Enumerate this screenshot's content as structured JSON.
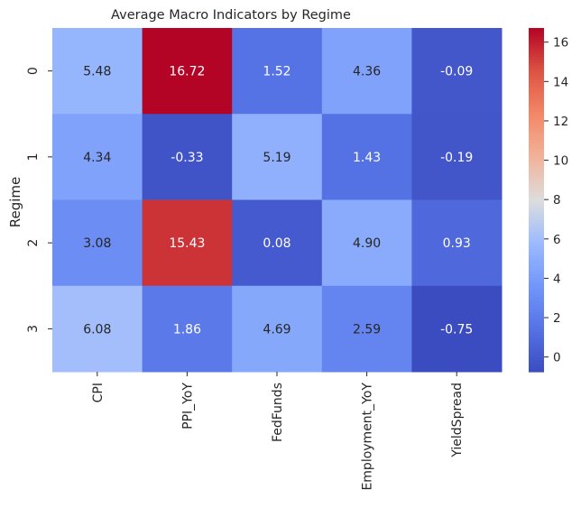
{
  "chart_data": {
    "type": "heatmap",
    "title": "Average Macro Indicators by Regime",
    "xlabel": "",
    "ylabel": "Regime",
    "x_categories": [
      "CPI",
      "PPI_YoY",
      "FedFunds",
      "Employment_YoY",
      "YieldSpread"
    ],
    "y_categories": [
      "0",
      "1",
      "2",
      "3"
    ],
    "values": [
      [
        5.48,
        16.72,
        1.52,
        4.36,
        -0.09
      ],
      [
        4.34,
        -0.33,
        5.19,
        1.43,
        -0.19
      ],
      [
        3.08,
        15.43,
        0.08,
        4.9,
        0.93
      ],
      [
        6.08,
        1.86,
        4.69,
        2.59,
        -0.75
      ]
    ],
    "cell_labels": [
      [
        "5.48",
        "16.72",
        "1.52",
        "4.36",
        "-0.09"
      ],
      [
        "4.34",
        "-0.33",
        "5.19",
        "1.43",
        "-0.19"
      ],
      [
        "3.08",
        "15.43",
        "0.08",
        "4.90",
        "0.93"
      ],
      [
        "6.08",
        "1.86",
        "4.69",
        "2.59",
        "-0.75"
      ]
    ],
    "colormap": "coolwarm",
    "colorbar": {
      "min": -0.75,
      "max": 16.72,
      "ticks": [
        0,
        2,
        4,
        6,
        8,
        10,
        12,
        14,
        16
      ],
      "tick_labels": [
        "0",
        "2",
        "4",
        "6",
        "8",
        "10",
        "12",
        "14",
        "16"
      ]
    },
    "grid": false,
    "legend": "colorbar-right"
  }
}
